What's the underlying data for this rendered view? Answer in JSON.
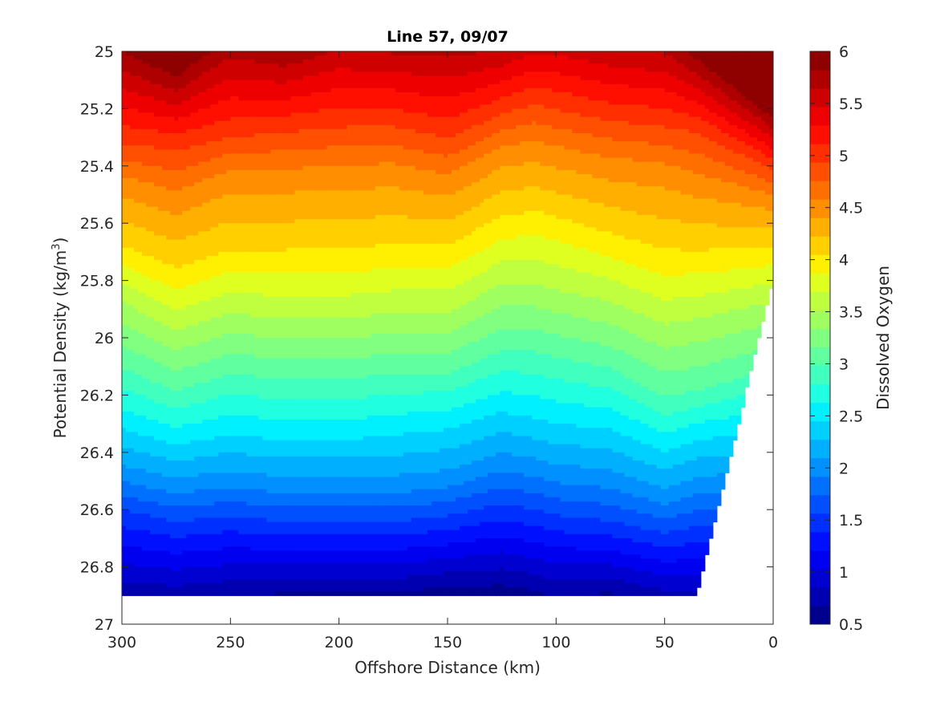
{
  "chart_data": {
    "type": "contourf",
    "title": "Line 57, 09/07",
    "xlabel": "Offshore Distance (km)",
    "ylabel_main": "Potential Density (kg/m",
    "ylabel_sup": "3",
    "ylabel_end": ")",
    "colorbar_label": "Dissolved Oxygen",
    "xlim": [
      300,
      0
    ],
    "x_direction": "reversed",
    "ylim": [
      25,
      27
    ],
    "y_direction": "reversed",
    "x_ticks": [
      300,
      250,
      200,
      150,
      100,
      50,
      0
    ],
    "x_tick_labels": [
      "300",
      "250",
      "200",
      "150",
      "100",
      "50",
      "0"
    ],
    "y_ticks": [
      25,
      25.2,
      25.4,
      25.6,
      25.8,
      26,
      26.2,
      26.4,
      26.6,
      26.8,
      27
    ],
    "y_tick_labels": [
      "25",
      "25.2",
      "25.4",
      "25.6",
      "25.8",
      "26",
      "26.2",
      "26.4",
      "26.6",
      "26.8",
      "27"
    ],
    "colorbar_ticks": [
      "0.5",
      "1",
      "1.5",
      "2",
      "2.5",
      "3",
      "3.5",
      "4",
      "4.5",
      "5",
      "5.5",
      "6"
    ],
    "contour_levels": [
      0.5,
      0.75,
      1,
      1.25,
      1.5,
      1.75,
      2,
      2.25,
      2.5,
      2.75,
      3,
      3.25,
      3.5,
      3.75,
      4,
      4.25,
      4.5,
      4.75,
      5,
      5.25,
      5.5,
      5.75,
      6
    ],
    "level_colors": [
      "#00008f",
      "#0000b0",
      "#0000d0",
      "#0000f0",
      "#0010ff",
      "#0030ff",
      "#0050ff",
      "#0070ff",
      "#0090ff",
      "#00b0ff",
      "#00d0ff",
      "#00f0ff",
      "#20ffdf",
      "#40ffbf",
      "#60ff9f",
      "#80ff80",
      "#9fff60",
      "#bfff40",
      "#dfff20",
      "#ffef00",
      "#ffcf00",
      "#ffaf00",
      "#ff8f00",
      "#ff6f00",
      "#ff4f00",
      "#ff2f00",
      "#ff0f00",
      "#ef0000",
      "#cf0000",
      "#af0000",
      "#8f0000"
    ],
    "distance_km": [
      300,
      275,
      250,
      225,
      200,
      175,
      150,
      125,
      110,
      100,
      75,
      50,
      35,
      0
    ],
    "bottom_density_limit": [
      26.9,
      26.9,
      26.9,
      26.9,
      26.9,
      26.9,
      26.9,
      26.9,
      26.9,
      26.9,
      26.9,
      26.9,
      26.9,
      25.8
    ],
    "oxygen_isopycnal_profiles": [
      {
        "level": 5.5,
        "density": [
          25.12,
          25.18,
          25.08,
          25.1,
          25.05,
          25.06,
          25.08,
          25.04,
          25.0,
          25.0,
          25.04,
          25.06,
          25.12,
          25.3
        ]
      },
      {
        "level": 5.0,
        "density": [
          25.3,
          25.32,
          25.28,
          25.26,
          25.24,
          25.24,
          25.28,
          25.2,
          25.16,
          25.18,
          25.22,
          25.24,
          25.26,
          25.4
        ]
      },
      {
        "level": 4.5,
        "density": [
          25.46,
          25.52,
          25.44,
          25.44,
          25.43,
          25.42,
          25.46,
          25.36,
          25.34,
          25.36,
          25.4,
          25.42,
          25.46,
          25.52
        ]
      },
      {
        "level": 4.0,
        "density": [
          25.7,
          25.78,
          25.72,
          25.72,
          25.72,
          25.7,
          25.7,
          25.6,
          25.58,
          25.6,
          25.66,
          25.72,
          25.72,
          25.7
        ]
      },
      {
        "level": 3.5,
        "density": [
          25.88,
          25.98,
          25.92,
          25.94,
          25.94,
          25.92,
          25.92,
          25.82,
          25.82,
          25.84,
          25.88,
          25.96,
          25.94,
          25.88
        ]
      },
      {
        "level": 3.0,
        "density": [
          26.1,
          26.18,
          26.12,
          26.14,
          26.14,
          26.12,
          26.12,
          26.04,
          26.04,
          26.06,
          26.1,
          26.2,
          26.18,
          26.1
        ]
      },
      {
        "level": 2.5,
        "density": [
          26.3,
          26.36,
          26.32,
          26.34,
          26.34,
          26.32,
          26.3,
          26.24,
          26.26,
          26.28,
          26.3,
          26.38,
          26.34,
          26.3
        ]
      },
      {
        "level": 2.0,
        "density": [
          26.48,
          26.52,
          26.5,
          26.52,
          26.52,
          26.52,
          26.5,
          26.44,
          26.46,
          26.48,
          26.5,
          26.56,
          26.52,
          26.5
        ]
      },
      {
        "level": 1.5,
        "density": [
          26.62,
          26.66,
          26.64,
          26.66,
          26.66,
          26.66,
          26.64,
          26.6,
          26.62,
          26.64,
          26.66,
          26.7,
          26.68,
          26.66
        ]
      },
      {
        "level": 1.0,
        "density": [
          26.8,
          26.82,
          26.8,
          26.8,
          26.8,
          26.8,
          26.78,
          26.76,
          26.78,
          26.8,
          26.8,
          26.84,
          26.84,
          26.82
        ]
      }
    ]
  }
}
